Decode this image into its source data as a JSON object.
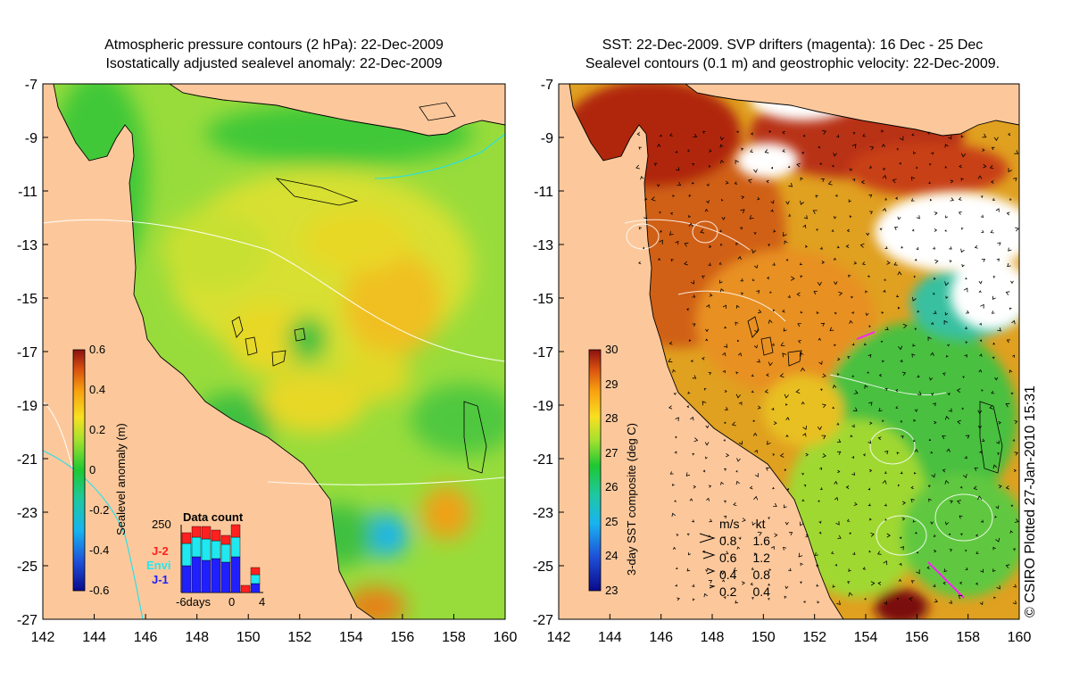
{
  "left_panel": {
    "title_line1": "Atmospheric pressure contours (2 hPa): 22-Dec-2009",
    "title_line2": "Isostatically adjusted sealevel anomaly: 22-Dec-2009",
    "colorbar": {
      "label": "Sealevel anomaly (m)",
      "ticks": [
        "0.6",
        "0.4",
        "0.2",
        "0",
        "-0.2",
        "-0.4",
        "-0.6"
      ],
      "min": -0.6,
      "max": 0.6
    },
    "data_count": {
      "title": "Data count",
      "ymax_label": "250",
      "x_labels": [
        "-6days",
        "0",
        "4"
      ],
      "series": [
        {
          "name": "J-2",
          "color": "#ff2020"
        },
        {
          "name": "Envi",
          "color": "#20e8f0"
        },
        {
          "name": "J-1",
          "color": "#2020ff"
        }
      ]
    }
  },
  "right_panel": {
    "title_line1": "SST: 22-Dec-2009. SVP drifters (magenta): 16 Dec - 25 Dec",
    "title_line2": "Sealevel contours (0.1 m) and geostrophic velocity: 22-Dec-2009.",
    "colorbar": {
      "label": "3-day SST composite (deg C)",
      "ticks": [
        "30",
        "29",
        "28",
        "27",
        "26",
        "25",
        "24",
        "23"
      ],
      "min": 23,
      "max": 30
    },
    "velocity_legend": {
      "header_ms": "m/s",
      "header_kt": "kt",
      "rows": [
        {
          "ms": "0.8",
          "kt": "1.6"
        },
        {
          "ms": "0.6",
          "kt": "1.2"
        },
        {
          "ms": "0.4",
          "kt": "0.8"
        },
        {
          "ms": "0.2",
          "kt": "0.4"
        }
      ]
    }
  },
  "axes": {
    "x_ticks": [
      "142",
      "144",
      "146",
      "148",
      "150",
      "152",
      "154",
      "156",
      "158",
      "160"
    ],
    "y_ticks": [
      "-7",
      "-9",
      "-11",
      "-13",
      "-15",
      "-17",
      "-19",
      "-21",
      "-23",
      "-25",
      "-27"
    ]
  },
  "credit": "© CSIRO Plotted 27-Jan-2010 15:31",
  "colors": {
    "land": "#fcc89b",
    "coast": "#000000",
    "sst_cloud": "#ffffff"
  }
}
